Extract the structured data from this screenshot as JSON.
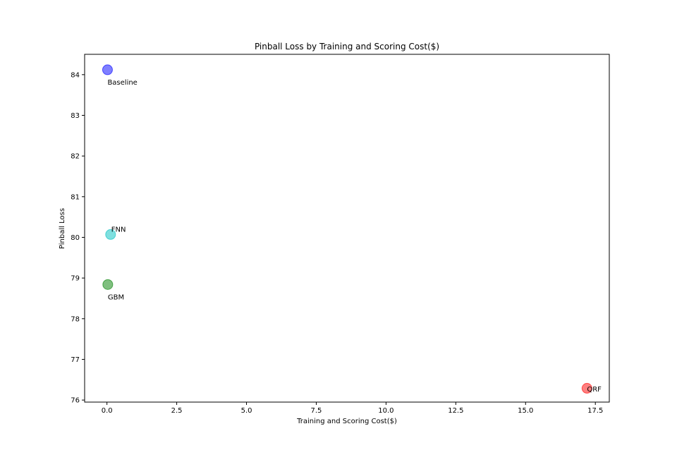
{
  "chart_data": {
    "type": "scatter",
    "title": "Pinball Loss by Training and Scoring Cost($)",
    "xlabel": "Training and Scoring Cost($)",
    "ylabel": "Pinball Loss",
    "xlim": [
      -0.8,
      18.0
    ],
    "ylim": [
      75.95,
      84.5
    ],
    "x_ticks": [
      0.0,
      2.5,
      5.0,
      7.5,
      10.0,
      12.5,
      15.0,
      17.5
    ],
    "x_tick_labels": [
      "0.0",
      "2.5",
      "5.0",
      "7.5",
      "10.0",
      "12.5",
      "15.0",
      "17.5"
    ],
    "y_ticks": [
      76,
      77,
      78,
      79,
      80,
      81,
      82,
      83,
      84
    ],
    "y_tick_labels": [
      "76",
      "77",
      "78",
      "79",
      "80",
      "81",
      "82",
      "83",
      "84"
    ],
    "grid": false,
    "legend": false,
    "points": [
      {
        "label": "Baseline",
        "x": 0.02,
        "y": 84.12,
        "color": "#0000ff",
        "label_pos": "below"
      },
      {
        "label": "FNN",
        "x": 0.13,
        "y": 80.07,
        "color": "#00bfbf",
        "label_pos": "above"
      },
      {
        "label": "GBM",
        "x": 0.03,
        "y": 78.84,
        "color": "#008000",
        "label_pos": "below"
      },
      {
        "label": "QRF",
        "x": 17.2,
        "y": 76.29,
        "color": "#ff0000",
        "label_pos": "center"
      }
    ]
  }
}
